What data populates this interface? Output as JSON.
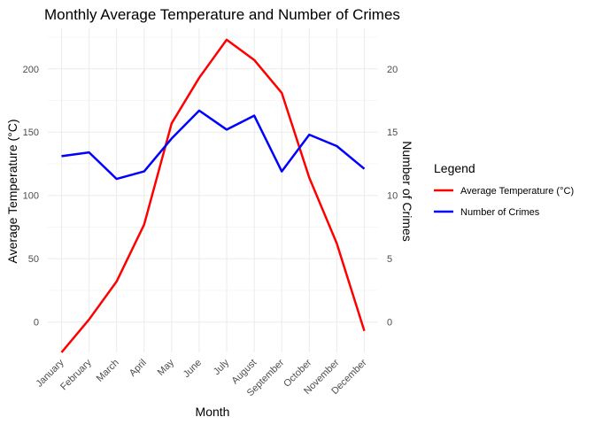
{
  "chart_data": {
    "type": "line",
    "title": "Monthly Average Temperature and Number of Crimes",
    "xlabel": "Month",
    "ylabel": "Average Temperature (°C)",
    "ylabel_right": "Number of Crimes",
    "categories": [
      "January",
      "February",
      "March",
      "April",
      "May",
      "June",
      "July",
      "August",
      "September",
      "October",
      "November",
      "December"
    ],
    "y_ticks": [
      "0",
      "50",
      "100",
      "150",
      "200"
    ],
    "y_right_ticks": [
      "0",
      "5",
      "10",
      "15",
      "20"
    ],
    "ylim": [
      -24,
      232
    ],
    "ylim_right": [
      -2.4,
      23.2
    ],
    "grid": true,
    "legend": {
      "title": "Legend",
      "position": "right",
      "entries": [
        "Average Temperature (°C)",
        "Number of Crimes"
      ]
    },
    "series": [
      {
        "name": "Average Temperature (°C)",
        "axis": "left",
        "color": "#ff0000",
        "values": [
          -24,
          2,
          32,
          77,
          157,
          193,
          223,
          207,
          181,
          114,
          62,
          -7
        ]
      },
      {
        "name": "Number of Crimes",
        "axis": "right",
        "color": "#0000ff",
        "values": [
          13.1,
          13.4,
          11.3,
          11.9,
          14.5,
          16.7,
          15.2,
          16.3,
          11.9,
          14.8,
          13.9,
          12.1
        ]
      }
    ]
  }
}
